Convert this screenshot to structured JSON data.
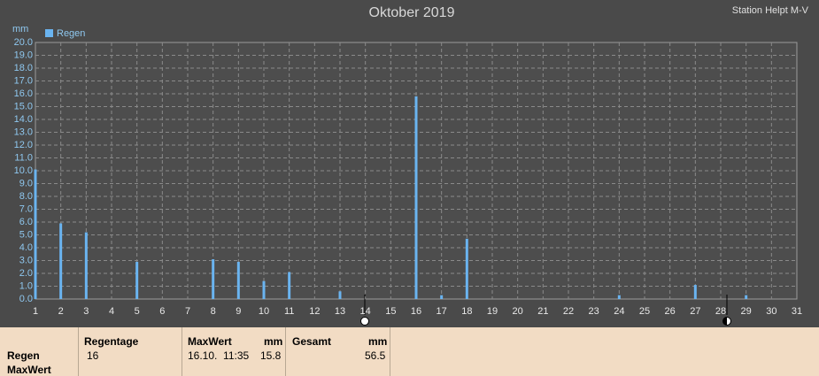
{
  "chart_data": {
    "type": "bar",
    "title": "Oktober 2019",
    "subtitle": "Station Helpt M-V",
    "y_label": "mm",
    "series": [
      {
        "name": "Regen",
        "color": "#6ab4f0",
        "x": [
          1,
          2,
          3,
          5,
          8,
          9,
          10,
          11,
          13,
          16,
          17,
          18,
          24,
          27,
          29
        ],
        "values": [
          10.1,
          5.9,
          5.2,
          2.9,
          3.1,
          2.9,
          1.4,
          2.1,
          0.6,
          15.8,
          0.3,
          4.7,
          0.3,
          1.1,
          0.3
        ]
      }
    ],
    "xlim": [
      1,
      31
    ],
    "xticks": [
      1,
      2,
      3,
      4,
      5,
      6,
      7,
      8,
      9,
      10,
      11,
      12,
      13,
      14,
      15,
      16,
      17,
      18,
      19,
      20,
      21,
      22,
      23,
      24,
      25,
      26,
      27,
      28,
      29,
      30,
      31
    ],
    "ylim": [
      0,
      20
    ],
    "yticks": [
      {
        "value": 0,
        "label": "0.0"
      },
      {
        "value": 1,
        "label": "1.0"
      },
      {
        "value": 2,
        "label": "2.0"
      },
      {
        "value": 3,
        "label": "3.0"
      },
      {
        "value": 4,
        "label": "4.0"
      },
      {
        "value": 5,
        "label": "5.0"
      },
      {
        "value": 6,
        "label": "6.0"
      },
      {
        "value": 7,
        "label": "7.0"
      },
      {
        "value": 8,
        "label": "8.0"
      },
      {
        "value": 9,
        "label": "9.0"
      },
      {
        "value": 10,
        "label": "10.0"
      },
      {
        "value": 11,
        "label": "11.0"
      },
      {
        "value": 12,
        "label": "12.0"
      },
      {
        "value": 13,
        "label": "13.0"
      },
      {
        "value": 14,
        "label": "14.0"
      },
      {
        "value": 15,
        "label": "15.0"
      },
      {
        "value": 16,
        "label": "16.0"
      },
      {
        "value": 17,
        "label": "17.0"
      },
      {
        "value": 18,
        "label": "18.0"
      },
      {
        "value": 19,
        "label": "19.0"
      },
      {
        "value": 20,
        "label": "20.0"
      }
    ],
    "grid": true,
    "legend": "top-left"
  },
  "summary": {
    "row_labels": [
      "Regen",
      "MaxWert"
    ],
    "regentage": {
      "header": "Regentage",
      "value": "16"
    },
    "maxwert": {
      "header": "MaxWert",
      "unit": "mm",
      "time": "16.10.  11:35",
      "value": "15.8"
    },
    "gesamt": {
      "header": "Gesamt",
      "unit": "mm",
      "value": "56.5"
    }
  }
}
